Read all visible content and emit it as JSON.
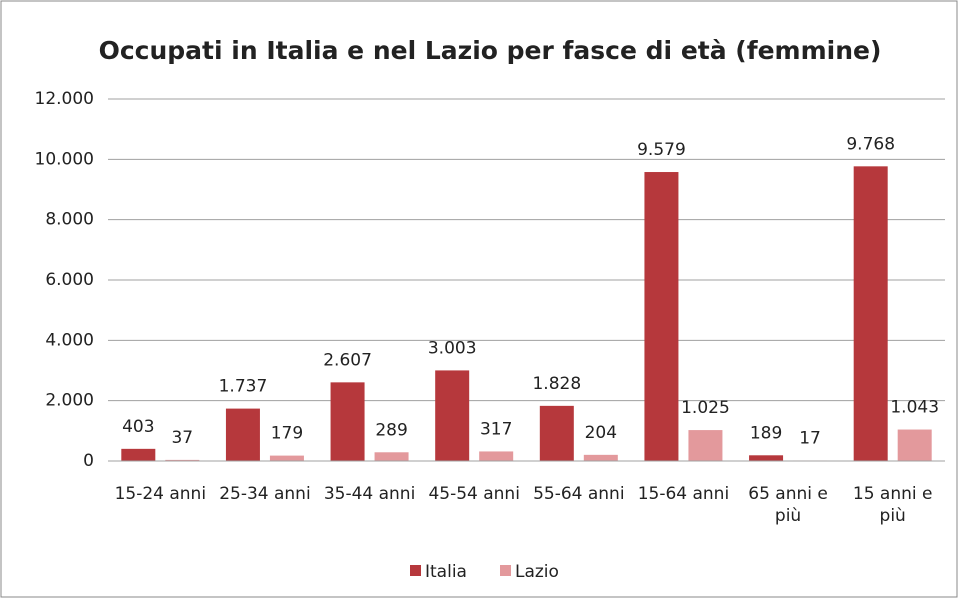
{
  "chart_data": {
    "type": "bar",
    "title": "Occupati in Italia e nel Lazio per fasce di età (femmine)",
    "categories": [
      "15-24 anni",
      "25-34 anni",
      "35-44 anni",
      "45-54 anni",
      "55-64 anni",
      "15-64 anni",
      "65 anni e più",
      "15 anni e più"
    ],
    "series": [
      {
        "name": "Italia",
        "color": "#b6383c",
        "values": [
          403,
          1737,
          2607,
          3003,
          1828,
          9579,
          189,
          9768
        ],
        "value_labels": [
          "403",
          "1.737",
          "2.607",
          "3.003",
          "1.828",
          "9.579",
          "189",
          "9.768"
        ]
      },
      {
        "name": "Lazio",
        "color": "#e3999c",
        "values": [
          37,
          179,
          289,
          317,
          204,
          1025,
          17,
          1043
        ],
        "value_labels": [
          "37",
          "179",
          "289",
          "317",
          "204",
          "1.025",
          "17",
          "1.043"
        ]
      }
    ],
    "ylim": [
      0,
      12000
    ],
    "yticks": [
      0,
      {
        "value": 2000,
        "label": "2.000"
      },
      {
        "value": 4000,
        "label": "4.000"
      },
      {
        "value": 6000,
        "label": "6.000"
      },
      {
        "value": 8000,
        "label": "8.000"
      },
      {
        "value": 10000,
        "label": "10.000"
      },
      {
        "value": 12000,
        "label": "12.000"
      }
    ],
    "grid": true,
    "legend": "bottom"
  }
}
